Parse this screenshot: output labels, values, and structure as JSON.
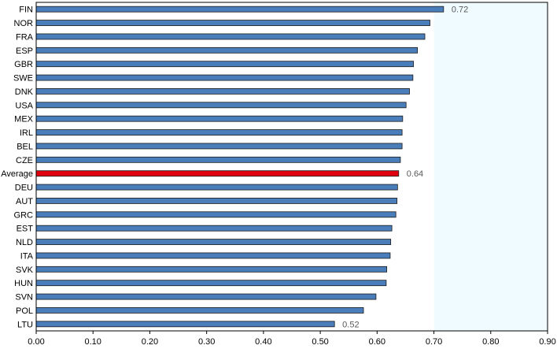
{
  "chart_data": {
    "type": "bar",
    "orientation": "horizontal",
    "categories": [
      "FIN",
      "NOR",
      "FRA",
      "ESP",
      "GBR",
      "SWE",
      "DNK",
      "USA",
      "MEX",
      "IRL",
      "BEL",
      "CZE",
      "Average",
      "DEU",
      "AUT",
      "GRC",
      "EST",
      "NLD",
      "ITA",
      "SVK",
      "HUN",
      "SVN",
      "POL",
      "LTU"
    ],
    "values": [
      0.717,
      0.693,
      0.684,
      0.671,
      0.664,
      0.663,
      0.657,
      0.651,
      0.645,
      0.644,
      0.644,
      0.641,
      0.638,
      0.636,
      0.635,
      0.633,
      0.626,
      0.624,
      0.623,
      0.617,
      0.616,
      0.598,
      0.576,
      0.525
    ],
    "highlight": "Average",
    "data_labels": {
      "FIN": "0.72",
      "Average": "0.64",
      "LTU": "0.52"
    },
    "xlim": [
      0,
      0.9
    ],
    "xticks": [
      "0.00",
      "0.10",
      "0.20",
      "0.30",
      "0.40",
      "0.50",
      "0.60",
      "0.70",
      "0.80",
      "0.90"
    ],
    "title": "",
    "xlabel": "",
    "ylabel": "",
    "grid": false,
    "shaded_region_from": 0.7,
    "colors": {
      "bar": "#4A7EBB",
      "bar_border": "#1A1A1A",
      "highlight": "#E0000F",
      "shaded": "#F0FBFF",
      "axis": "#000000"
    }
  }
}
